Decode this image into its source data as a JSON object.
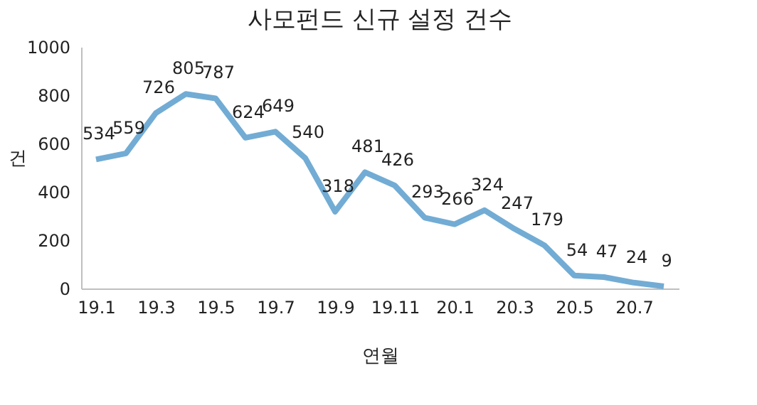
{
  "chart_data": {
    "type": "line",
    "title": "사모펀드 신규 설정 건수",
    "xlabel": "연월",
    "ylabel": "건",
    "categories": [
      "19.1",
      null,
      "19.3",
      null,
      "19.5",
      null,
      "19.7",
      null,
      "19.9",
      null,
      "19.11",
      null,
      "20.1",
      null,
      "20.3",
      null,
      "20.5",
      null,
      "20.7",
      null
    ],
    "series": [
      {
        "color": "#72acd4",
        "values": [
          534,
          559,
          726,
          805,
          787,
          624,
          649,
          540,
          318,
          481,
          426,
          293,
          266,
          324,
          247,
          179,
          54,
          47,
          24,
          9
        ]
      }
    ],
    "ylim": [
      0,
      1000
    ],
    "yticks": [
      0,
      200,
      400,
      600,
      800,
      1000
    ],
    "data_labels": true,
    "grid": false,
    "marker": "none",
    "line_style": "solid"
  }
}
